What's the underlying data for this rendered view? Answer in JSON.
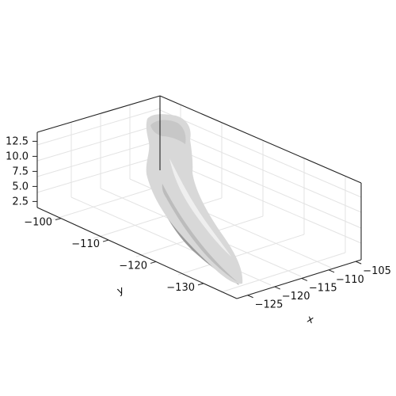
{
  "chart_data": {
    "type": "surface3d",
    "title": "",
    "xlabel": "x",
    "ylabel": "y",
    "zlabel": "",
    "xlim": [
      -127,
      -104
    ],
    "ylim": [
      -137,
      -95
    ],
    "zlim": [
      1.5,
      14
    ],
    "xticks": [
      -125,
      -120,
      -115,
      -110,
      -105
    ],
    "yticks": [
      -100,
      -110,
      -120,
      -130
    ],
    "zticks": [
      2.5,
      5.0,
      7.5,
      10.0,
      12.5
    ],
    "xtick_labels": [
      "−125",
      "−120",
      "−115",
      "−110",
      "−105"
    ],
    "ytick_labels": [
      "−100",
      "−110",
      "−120",
      "−130"
    ],
    "ztick_labels": [
      "2.5",
      "5.0",
      "7.5",
      "10.0",
      "12.5"
    ],
    "grid": true,
    "surface_color": "#d8d8d8"
  }
}
